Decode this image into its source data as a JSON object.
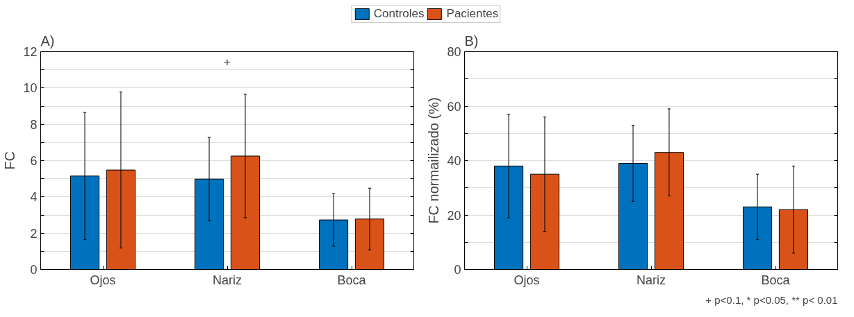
{
  "chart_data": [
    {
      "type": "bar",
      "title": "A)",
      "ylabel": "FC",
      "categories": [
        "Ojos",
        "Nariz",
        "Boca"
      ],
      "ylim": [
        0,
        12
      ],
      "yticks": [
        0,
        {
          "value": 1,
          "label": null
        },
        2,
        {
          "value": 3,
          "label": null
        },
        4,
        {
          "value": 5,
          "label": null
        },
        6,
        {
          "value": 7,
          "label": null
        },
        8,
        {
          "value": 9,
          "label": null
        },
        10,
        {
          "value": 11,
          "label": null
        },
        12
      ],
      "grid": "y",
      "legend": "top",
      "series": [
        {
          "name": "Controles",
          "color": "#0072bd",
          "values": [
            5.15,
            4.98,
            2.73
          ],
          "errors": [
            3.5,
            2.3,
            1.45
          ]
        },
        {
          "name": "Pacientes",
          "color": "#d95319",
          "values": [
            5.48,
            6.25,
            2.78
          ],
          "errors": [
            4.3,
            3.4,
            1.7
          ]
        }
      ],
      "annotations": [
        "+"
      ]
    },
    {
      "type": "bar",
      "title": "B)",
      "ylabel": "FC normailizado (%)",
      "categories": [
        "Ojos",
        "Nariz",
        "Boca"
      ],
      "ylim": [
        0,
        80
      ],
      "yticks": [
        0,
        {
          "value": 10,
          "label": null
        },
        20,
        {
          "value": 30,
          "label": null
        },
        40,
        {
          "value": 50,
          "label": null
        },
        60,
        {
          "value": 70,
          "label": null
        },
        80
      ],
      "grid": "y",
      "series": [
        {
          "color": "#0072bd",
          "values": [
            38,
            39,
            23
          ],
          "errors": [
            19,
            14,
            12
          ]
        },
        {
          "color": "#d95319",
          "values": [
            35,
            43,
            22
          ],
          "errors": [
            21,
            16,
            16
          ]
        }
      ],
      "annotations": [
        "+ p<0.1, * p<0.05, ** p< 0.01"
      ]
    }
  ]
}
